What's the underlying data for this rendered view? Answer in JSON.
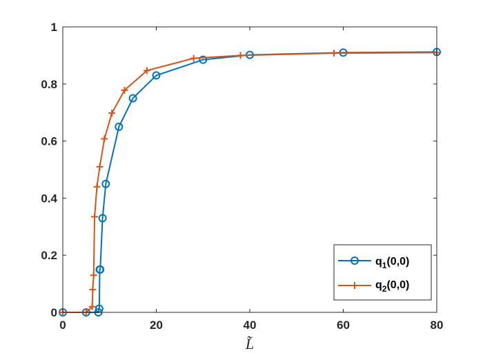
{
  "chart_data": {
    "type": "line",
    "title": "",
    "xlabel": "L̃",
    "ylabel": "",
    "xlim": [
      0,
      80
    ],
    "ylim": [
      0,
      1
    ],
    "xticks": [
      0,
      20,
      40,
      60,
      80
    ],
    "yticks": [
      0,
      0.2,
      0.4,
      0.6,
      0.8,
      1
    ],
    "xtick_labels": [
      "0",
      "20",
      "40",
      "60",
      "80"
    ],
    "ytick_labels": [
      "0",
      "0.2",
      "0.4",
      "0.6",
      "0.8",
      "1"
    ],
    "grid": false,
    "legend_position": "bottom-right",
    "series": [
      {
        "name": "q1(0,0)",
        "legend_main": "q",
        "legend_sub": "1",
        "legend_tail": "(0,0)",
        "color": "#0072BD",
        "marker": "circle",
        "x": [
          0,
          5,
          7.6,
          7.8,
          7.9,
          8.0,
          8.5,
          9.2,
          12,
          15,
          20,
          30,
          40,
          60,
          80
        ],
        "y": [
          0,
          0,
          0,
          0.013,
          0.15,
          0.15,
          0.33,
          0.45,
          0.65,
          0.75,
          0.83,
          0.885,
          0.902,
          0.91,
          0.912
        ]
      },
      {
        "name": "q2(0,0)",
        "legend_main": "q",
        "legend_sub": "2",
        "legend_tail": "(0,0)",
        "color": "#D95319",
        "marker": "plus",
        "x": [
          0,
          5,
          6.3,
          6.4,
          6.6,
          6.8,
          7.3,
          7.9,
          8.9,
          10.5,
          13.2,
          18,
          28,
          38,
          58,
          80
        ],
        "y": [
          0,
          0,
          0.02,
          0.08,
          0.13,
          0.335,
          0.44,
          0.51,
          0.608,
          0.698,
          0.778,
          0.847,
          0.89,
          0.9,
          0.908,
          0.91
        ]
      }
    ]
  }
}
